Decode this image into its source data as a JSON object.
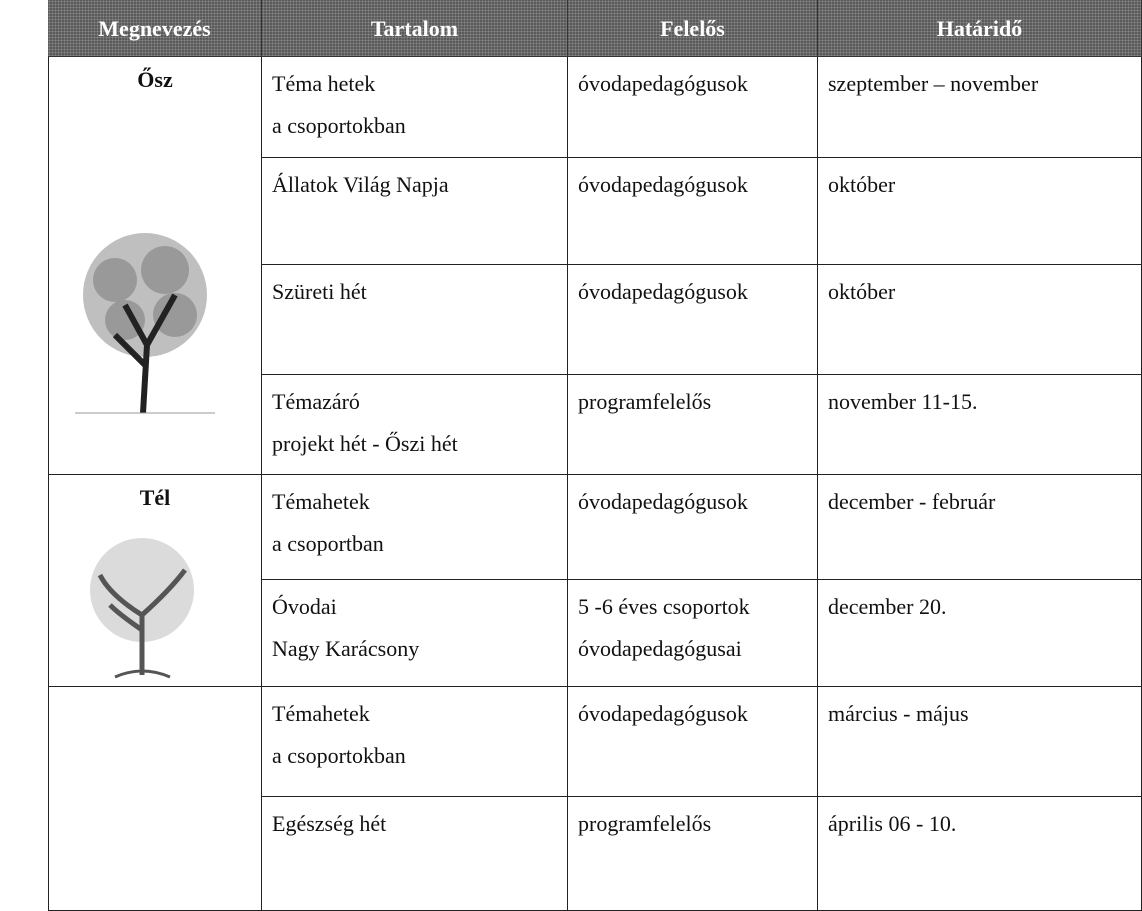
{
  "header": {
    "columns": [
      "Megnevezés",
      "Tartalom",
      "Felelős",
      "Határidő"
    ]
  },
  "groups": [
    {
      "label": "Ősz",
      "rows": [
        {
          "tartalom": [
            "Téma hetek",
            "a csoportokban"
          ],
          "felelos": [
            "óvodapedagógusok"
          ],
          "hatarido": [
            "szeptember – november"
          ]
        },
        {
          "tartalom": [
            "Állatok Világ Napja"
          ],
          "felelos": [
            "óvodapedagógusok"
          ],
          "hatarido": [
            "október"
          ]
        },
        {
          "tartalom": [
            "Szüreti hét"
          ],
          "felelos": [
            "óvodapedagógusok"
          ],
          "hatarido": [
            "október"
          ]
        },
        {
          "tartalom": [
            "Témazáró",
            "projekt hét - Őszi hét"
          ],
          "felelos": [
            "programfelelős"
          ],
          "hatarido": [
            "november 11-15."
          ]
        }
      ]
    },
    {
      "label": "Tél",
      "rows": [
        {
          "tartalom": [
            "Témahetek",
            "a csoportban"
          ],
          "felelos": [
            "óvodapedagógusok"
          ],
          "hatarido": [
            "december - február"
          ]
        },
        {
          "tartalom": [
            "Óvodai",
            "Nagy Karácsony"
          ],
          "felelos": [
            "5 -6 éves csoportok",
            "óvodapedagógusai"
          ],
          "hatarido": [
            "december 20."
          ]
        }
      ]
    },
    {
      "rows": [
        {
          "tartalom": [
            "Témahetek",
            "a csoportokban"
          ],
          "felelos": [
            "óvodapedagógusok"
          ],
          "hatarido": [
            "március - május"
          ]
        },
        {
          "tartalom": [
            "Egészség hét"
          ],
          "felelos": [
            "programfelelős"
          ],
          "hatarido": [
            "április 06 - 10."
          ]
        }
      ]
    }
  ]
}
